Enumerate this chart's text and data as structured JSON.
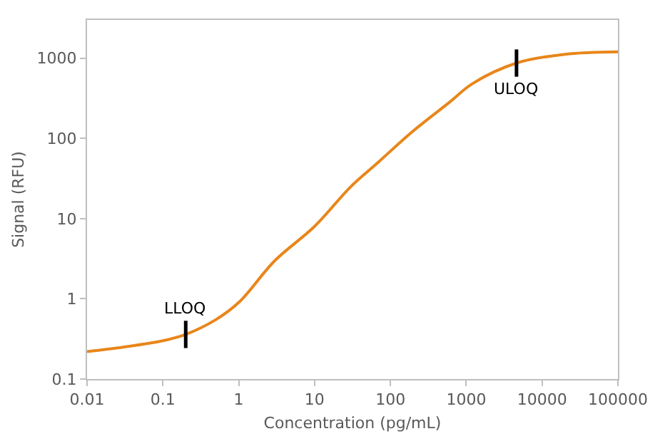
{
  "chart_data": {
    "type": "line",
    "xlabel": "Concentration (pg/mL)",
    "ylabel": "Signal (RFU)",
    "log": "xy",
    "x": [
      0.01,
      0.03,
      0.1,
      0.2,
      0.5,
      1,
      3,
      10,
      30,
      70,
      200,
      600,
      1200,
      4600,
      20000,
      100000
    ],
    "series": [
      {
        "color": "#e8861a",
        "values": [
          0.22,
          0.25,
          0.3,
          0.36,
          0.55,
          0.9,
          3,
          8,
          25,
          51,
          124,
          282,
          480,
          870,
          1120,
          1200
        ]
      }
    ],
    "xlim": [
      0.01,
      100000
    ],
    "xticks": [
      0.01,
      0.1,
      1,
      10,
      100,
      1000,
      10000,
      100000
    ],
    "ylim": [
      0.1,
      3000
    ],
    "yticks": [
      0.1,
      1,
      10,
      100,
      1000
    ],
    "annotations": [
      {
        "text": "LLOQ",
        "x": 0.2,
        "y": 0.36
      },
      {
        "text": "ULOQ",
        "x": 4600,
        "y": 870
      }
    ],
    "grid": false,
    "marker": "none",
    "line_style": "solid"
  }
}
